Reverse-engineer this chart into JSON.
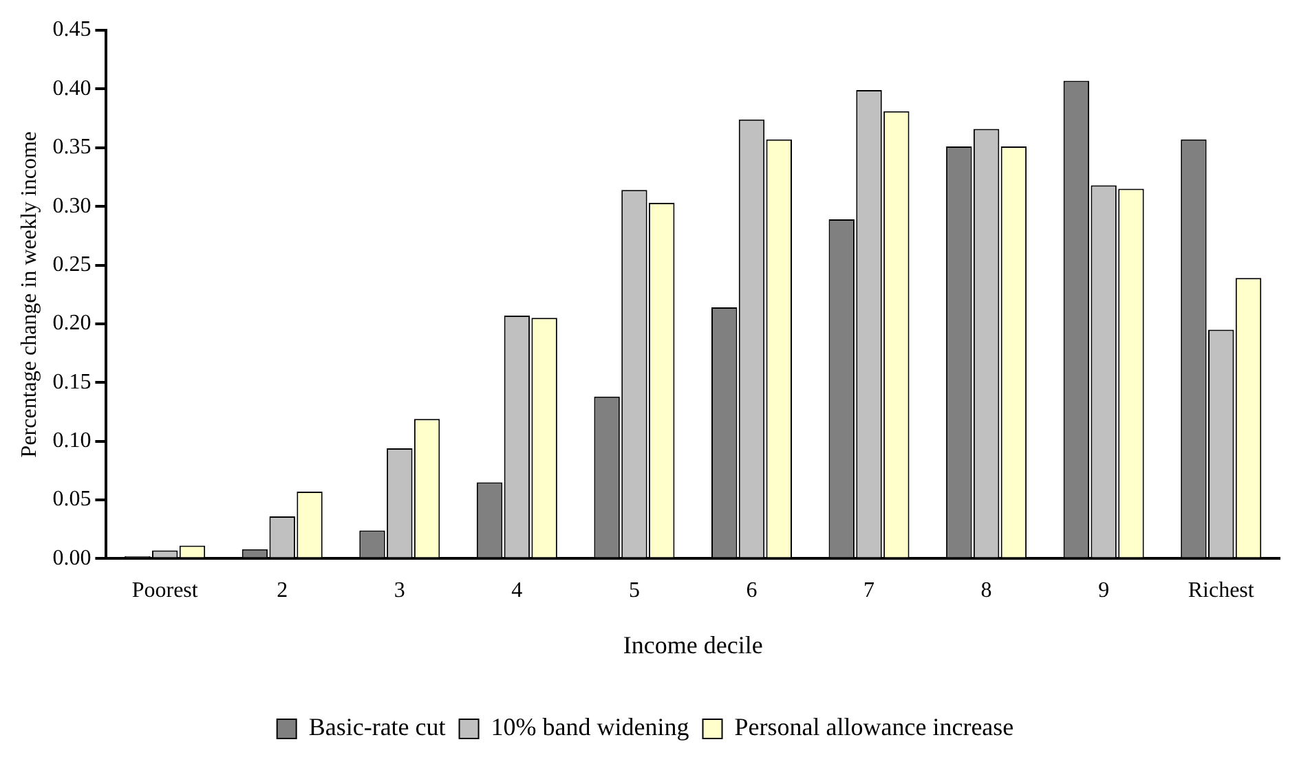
{
  "chart_data": {
    "type": "bar",
    "xlabel": "Income decile",
    "ylabel": "Percentage change in weekly income",
    "categories": [
      "Poorest",
      "2",
      "3",
      "4",
      "5",
      "6",
      "7",
      "8",
      "9",
      "Richest"
    ],
    "series": [
      {
        "name": "Basic-rate cut",
        "color": "#808080",
        "values": [
          0.002,
          0.008,
          0.024,
          0.065,
          0.138,
          0.214,
          0.289,
          0.351,
          0.407,
          0.357
        ]
      },
      {
        "name": "10% band widening",
        "color": "#c0c0c0",
        "values": [
          0.007,
          0.036,
          0.094,
          0.207,
          0.314,
          0.374,
          0.399,
          0.366,
          0.318,
          0.195
        ]
      },
      {
        "name": "Personal allowance increase",
        "color": "#ffffcc",
        "values": [
          0.011,
          0.057,
          0.119,
          0.205,
          0.303,
          0.357,
          0.381,
          0.351,
          0.315,
          0.239
        ]
      }
    ],
    "ylim": [
      0,
      0.45
    ],
    "yticks": [
      {
        "value": 0,
        "label": "0.00"
      },
      {
        "value": 0.05,
        "label": "0.05"
      },
      {
        "value": 0.1,
        "label": "0.10"
      },
      {
        "value": 0.15,
        "label": "0.15"
      },
      {
        "value": 0.2,
        "label": "0.20"
      },
      {
        "value": 0.25,
        "label": "0.25"
      },
      {
        "value": 0.3,
        "label": "0.30"
      },
      {
        "value": 0.35,
        "label": "0.35"
      },
      {
        "value": 0.4,
        "label": "0.40"
      },
      {
        "value": 0.45,
        "label": "0.45"
      }
    ],
    "grid": false,
    "legend": "bottom"
  }
}
